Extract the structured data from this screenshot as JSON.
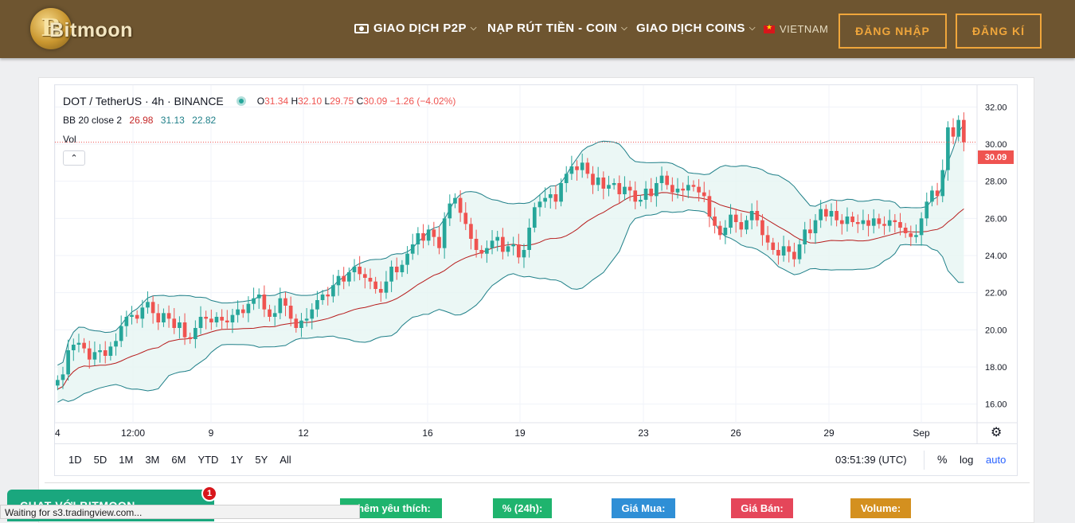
{
  "header": {
    "logo_text": "Bitmoon",
    "logo_glyph": "B",
    "nav": [
      {
        "label": "GIAO DỊCH P2P",
        "icon": "money-icon"
      },
      {
        "label": "NẠP RÚT TIỀN - COIN"
      },
      {
        "label": "GIAO DỊCH COINS"
      }
    ],
    "region": "VIETNAM",
    "login": "ĐĂNG NHẬP",
    "register": "ĐĂNG KÍ"
  },
  "chart_header": {
    "symbol": "DOT / TetherUS · 4h · BINANCE",
    "o_label": "O",
    "o": "31.34",
    "h_label": "H",
    "h": "32.10",
    "l_label": "L",
    "l": "29.75",
    "c_label": "C",
    "c": "30.09",
    "change": "−1.26 (−4.02%)",
    "bb_label": "BB 20 close 2",
    "bb_mid": "26.98",
    "bb_upper": "31.13",
    "bb_lower": "22.82",
    "vol_label": "Vol",
    "collapse_glyph": "⌃"
  },
  "last_price_label": "30.09",
  "toolbar": {
    "ranges": [
      "1D",
      "5D",
      "1M",
      "3M",
      "6M",
      "YTD",
      "1Y",
      "5Y",
      "All"
    ],
    "time": "03:51:39 (UTC)",
    "percent": "%",
    "log": "log",
    "auto": "auto"
  },
  "stats": {
    "favorite": "Thêm yêu thích:",
    "change24": "% (24h):",
    "buy": "Giá Mua:",
    "sell": "Giá Bán:",
    "volume": "Volume:"
  },
  "chat": {
    "label": "CHAT VỚI BITMOON",
    "badge": "1"
  },
  "status_bar": "Waiting for s3.tradingview.com...",
  "colors": {
    "up": "#26a69a",
    "down": "#ef5350",
    "basis": "#b71c1c",
    "band": "#1e7f88",
    "band_fill": "#e6f5f3"
  },
  "chart_data": {
    "type": "candlestick",
    "ylim": [
      15.0,
      33.0
    ],
    "yticks": [
      "16.00",
      "18.00",
      "20.00",
      "22.00",
      "24.00",
      "26.00",
      "28.00",
      "30.00",
      "32.00"
    ],
    "xticks": [
      "4",
      "12:00",
      "9",
      "12",
      "16",
      "19",
      "23",
      "26",
      "29",
      "Sep"
    ],
    "closes": [
      17.3,
      17.6,
      18.9,
      19.2,
      19.3,
      19.0,
      18.4,
      18.8,
      18.9,
      18.6,
      19.1,
      19.4,
      20.2,
      20.7,
      20.8,
      20.6,
      21.2,
      21.5,
      20.9,
      20.4,
      20.9,
      20.6,
      20.1,
      20.4,
      19.6,
      19.5,
      20.1,
      20.7,
      20.6,
      20.4,
      20.7,
      20.5,
      20.4,
      20.8,
      21.1,
      20.9,
      21.4,
      21.7,
      21.9,
      21.1,
      20.7,
      20.9,
      21.7,
      21.3,
      20.6,
      20.1,
      20.5,
      20.6,
      21.1,
      21.6,
      21.9,
      21.8,
      22.4,
      22.9,
      22.6,
      23.1,
      23.4,
      23.0,
      22.8,
      22.6,
      22.2,
      22.0,
      22.6,
      23.4,
      23.1,
      23.5,
      24.1,
      24.6,
      25.2,
      24.8,
      25.4,
      25.0,
      24.4,
      26.0,
      26.8,
      27.1,
      26.3,
      25.7,
      24.9,
      24.3,
      24.1,
      24.4,
      24.8,
      25.0,
      24.2,
      24.5,
      24.6,
      23.9,
      24.3,
      25.5,
      26.6,
      26.9,
      27.1,
      27.3,
      26.9,
      27.9,
      28.4,
      28.8,
      28.6,
      29.0,
      28.4,
      27.8,
      28.2,
      27.6,
      27.8,
      27.9,
      27.3,
      27.7,
      27.5,
      26.9,
      27.0,
      27.6,
      27.2,
      27.9,
      28.3,
      27.8,
      27.4,
      27.6,
      27.5,
      27.8,
      27.7,
      27.4,
      27.2,
      26.1,
      25.6,
      25.1,
      25.5,
      26.2,
      25.8,
      25.4,
      25.9,
      26.4,
      25.9,
      25.1,
      24.7,
      24.3,
      24.0,
      24.5,
      24.2,
      23.8,
      24.6,
      25.4,
      25.2,
      25.9,
      26.5,
      26.1,
      26.4,
      25.9,
      25.7,
      26.1,
      25.8,
      25.7,
      25.9,
      25.6,
      26.0,
      25.7,
      25.6,
      25.9,
      25.8,
      25.5,
      25.2,
      25.0,
      25.1,
      26.0,
      26.9,
      27.5,
      27.2,
      28.6,
      30.9,
      30.4,
      31.3,
      30.1
    ]
  }
}
